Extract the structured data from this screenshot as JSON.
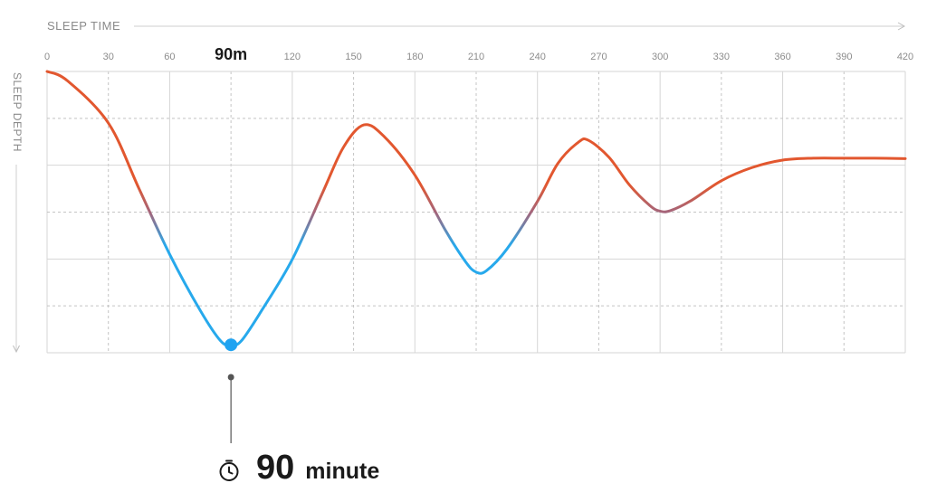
{
  "chart_data": {
    "type": "line",
    "xlabel": "SLEEP TIME",
    "ylabel": "SLEEP DEPTH",
    "xlim": [
      0,
      420
    ],
    "ylim": [
      0,
      6
    ],
    "x_ticks": [
      "0",
      "30",
      "60",
      "90m",
      "120",
      "150",
      "180",
      "210",
      "240",
      "270",
      "300",
      "330",
      "360",
      "390",
      "420"
    ],
    "grid": true,
    "series": [
      {
        "x": [
          0,
          10,
          30,
          45,
          60,
          75,
          85,
          90,
          95,
          105,
          120,
          135,
          145,
          155,
          165,
          180,
          195,
          205,
          210,
          215,
          225,
          240,
          250,
          260,
          265,
          275,
          285,
          295,
          300,
          305,
          315,
          330,
          345,
          360,
          375,
          390,
          405,
          420
        ],
        "y": [
          6.0,
          5.8,
          4.9,
          3.5,
          2.1,
          0.9,
          0.25,
          0.17,
          0.25,
          0.9,
          1.99,
          3.43,
          4.38,
          4.86,
          4.61,
          3.79,
          2.61,
          1.93,
          1.72,
          1.75,
          2.21,
          3.23,
          4.04,
          4.49,
          4.53,
          4.17,
          3.58,
          3.14,
          3.02,
          3.03,
          3.24,
          3.67,
          3.95,
          4.11,
          4.15,
          4.15,
          4.15,
          4.14
        ]
      }
    ],
    "colors": {
      "high": "#e2572f",
      "low": "#27a9ec"
    },
    "highlight": {
      "x": 90,
      "y": 0.17,
      "color": "#1fa3f1"
    }
  },
  "readout": {
    "value": "90",
    "unit": "minute"
  },
  "icons": {
    "timer": "stopwatch-icon"
  }
}
